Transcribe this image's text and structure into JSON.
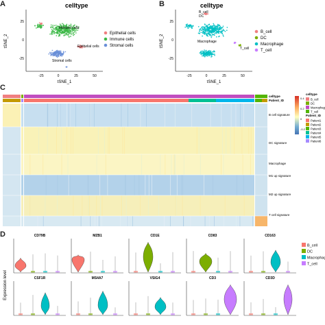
{
  "panels": {
    "a": {
      "letter": "A",
      "title": "celltype",
      "xlabel": "tSNE_1",
      "ylabel": "tSNE_2",
      "xticks": [
        "-25",
        "0",
        "25",
        "50"
      ],
      "yticks": [
        "25",
        "0",
        "-25"
      ],
      "legend": [
        "Epithelial cells",
        "Immune cells",
        "Stromal cells"
      ],
      "cluster_labels": [
        "Immune cells",
        "Stromal cells",
        "Epithelial cells"
      ],
      "colors": {
        "epithelial": "#f07f80",
        "immune": "#3cb846",
        "stromal": "#6a8fd8"
      }
    },
    "b": {
      "letter": "B",
      "title": "celltype",
      "xlabel": "tSNE_1",
      "ylabel": "tSNE_2",
      "xticks": [
        "-25",
        "0",
        "25",
        "50"
      ],
      "yticks": [
        "25",
        "0",
        "-25"
      ],
      "legend": [
        "B_cell",
        "DC",
        "Macrophage",
        "T_cell"
      ],
      "cluster_labels": [
        "B_cell",
        "DC",
        "Macrophage",
        "T_cell"
      ],
      "colors": {
        "B_cell": "#f07f80",
        "DC": "#7cae00",
        "Macrophage": "#00bfc4",
        "T_cell": "#c77cff"
      }
    },
    "c": {
      "letter": "C",
      "row_labels": [
        "B cell signature",
        "DC signature",
        "Macrophage",
        "M1 up signature",
        "M2 up signature",
        "T cell signature"
      ],
      "legend_celltype_title": "celltype",
      "legend_patient_title": "Patient_ID",
      "annotation_labels": [
        "celltype",
        "Patient_ID"
      ],
      "celltype_legend": [
        "B_cell",
        "DC",
        "Macrophage",
        "T_cell"
      ],
      "patient_legend": [
        "Patient1",
        "Patient2",
        "Patient3",
        "Patient4",
        "Patient5",
        "Patient6"
      ],
      "scale_ticks": [
        "0.4",
        "0.2",
        "0",
        "-0.2"
      ],
      "patient_colors": [
        "#f8766d",
        "#c49a00",
        "#53b400",
        "#00c094",
        "#00b6eb",
        "#a58aff"
      ]
    },
    "d": {
      "letter": "D",
      "ylabel": "Expression level",
      "genes_row1": [
        "CD79B",
        "MZB1",
        "CD1E",
        "CD83",
        "CD163"
      ],
      "genes_row2": [
        "CSF1R",
        "MS4A7",
        "VSIG4",
        "CD3",
        "CD3D"
      ],
      "legend": [
        "B_cell",
        "DC",
        "Macrophage",
        "T_cell"
      ],
      "colors": [
        "#f8766d",
        "#7cae00",
        "#00bfc4",
        "#c77cff"
      ]
    }
  }
}
